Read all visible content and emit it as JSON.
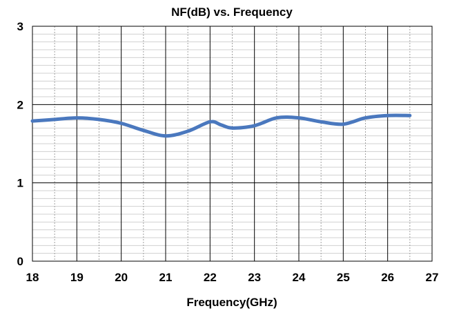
{
  "chart_data": {
    "type": "line",
    "title": "NF(dB) vs. Frequency",
    "xlabel": "Frequency(GHz)",
    "ylabel": "",
    "xlim": [
      18,
      27
    ],
    "ylim": [
      0,
      3
    ],
    "x_ticks": [
      "18",
      "19",
      "20",
      "21",
      "22",
      "23",
      "24",
      "25",
      "26",
      "27"
    ],
    "y_ticks": [
      "0",
      "1",
      "2",
      "3"
    ],
    "x_minor_step": 0.5,
    "y_minor_step": 0.1,
    "grid": true,
    "legend": "none",
    "series": [
      {
        "color": "#4a78be",
        "x": [
          18,
          18.5,
          19,
          19.5,
          20,
          20.5,
          21,
          21.5,
          22,
          22.25,
          22.5,
          23,
          23.5,
          24,
          24.5,
          25,
          25.5,
          26,
          26.5
        ],
        "y": [
          1.79,
          1.81,
          1.83,
          1.81,
          1.76,
          1.67,
          1.6,
          1.66,
          1.78,
          1.74,
          1.7,
          1.73,
          1.83,
          1.83,
          1.78,
          1.75,
          1.83,
          1.86,
          1.86
        ]
      }
    ]
  }
}
